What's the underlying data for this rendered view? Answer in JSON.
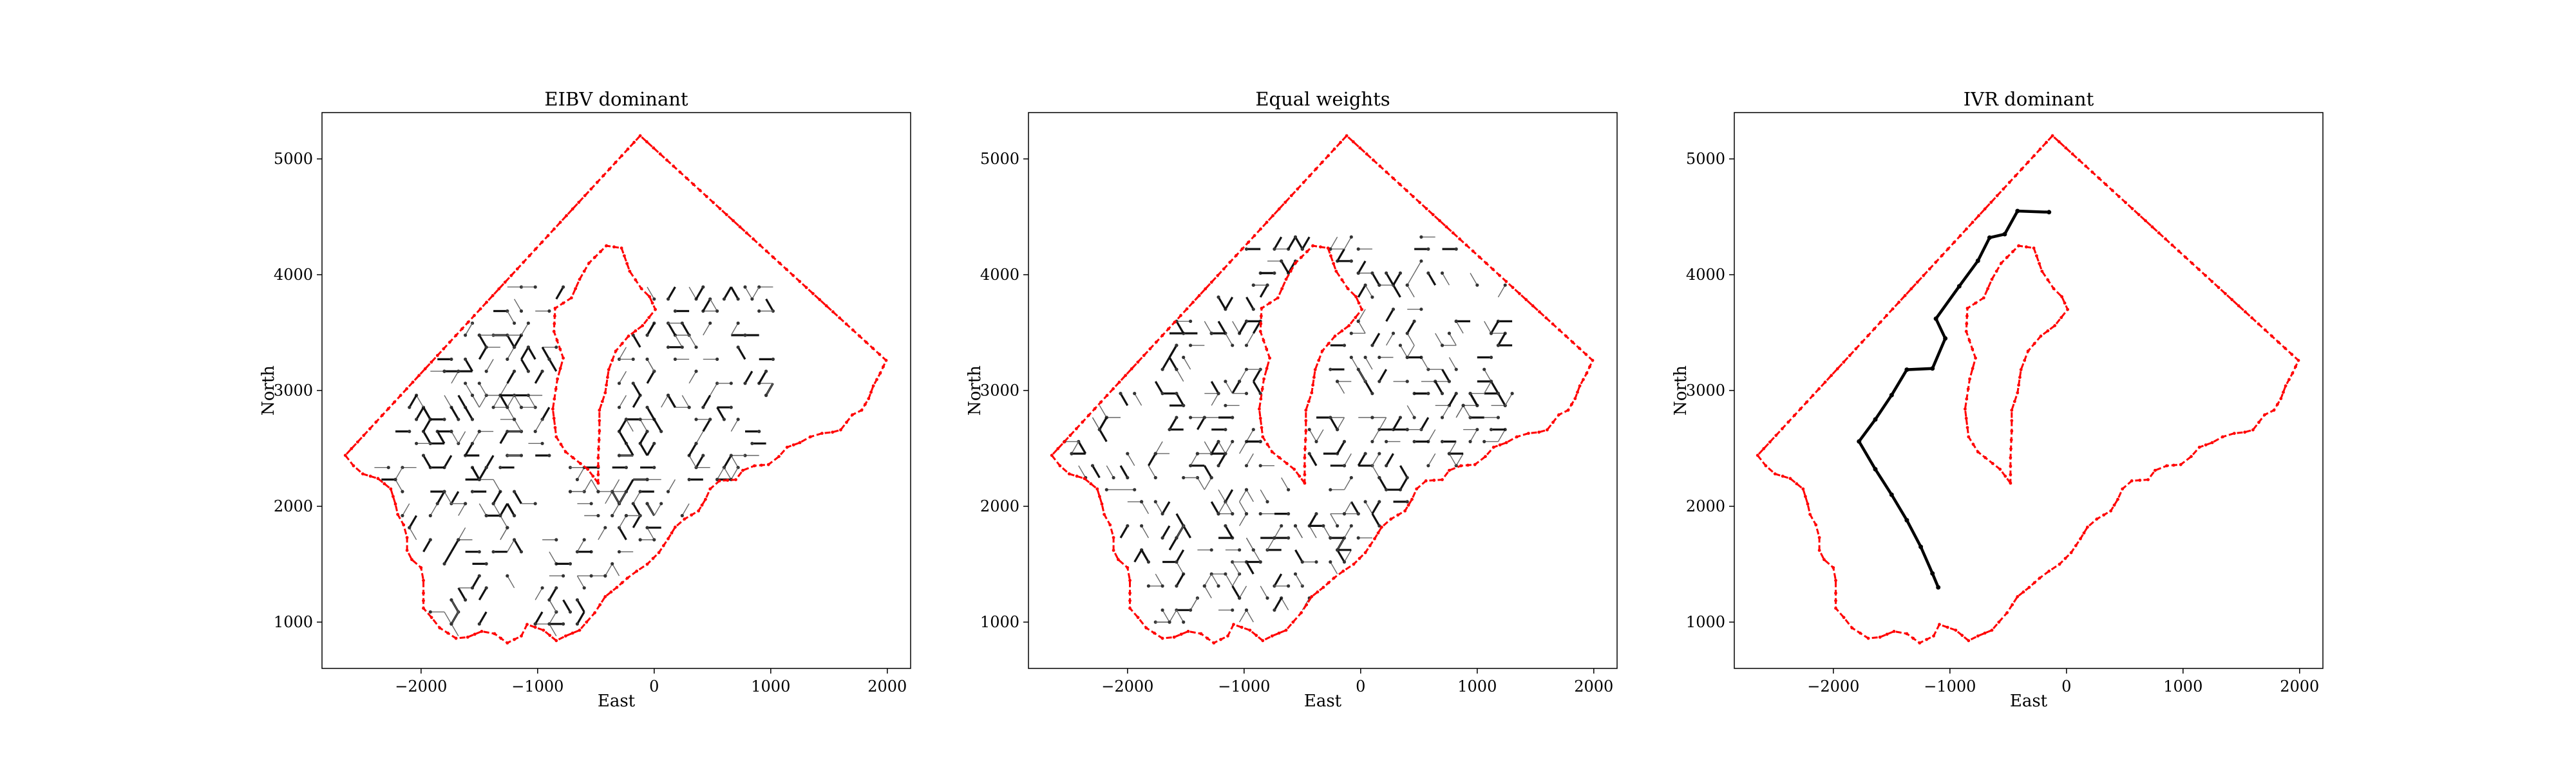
{
  "chart_data": [
    {
      "type": "line",
      "title": "EIBV dominant",
      "xlabel": "East",
      "ylabel": "North",
      "xlim": [
        -2850,
        2200
      ],
      "ylim": [
        600,
        5400
      ],
      "xticks": [
        -2000,
        -1000,
        0,
        1000,
        2000
      ],
      "yticks": [
        1000,
        2000,
        3000,
        4000,
        5000
      ],
      "grid": false,
      "path_style": "dense",
      "path_extent": {
        "east": [
          -2400,
          1050
        ],
        "north": [
          880,
          3900
        ]
      }
    },
    {
      "type": "line",
      "title": "Equal weights",
      "xlabel": "East",
      "ylabel": "North",
      "xlim": [
        -2850,
        2200
      ],
      "ylim": [
        600,
        5400
      ],
      "xticks": [
        -2000,
        -1000,
        0,
        1000,
        2000
      ],
      "yticks": [
        1000,
        2000,
        3000,
        4000,
        5000
      ],
      "grid": false,
      "path_style": "dense",
      "path_extent": {
        "east": [
          -2600,
          1300
        ],
        "north": [
          1000,
          4350
        ]
      }
    },
    {
      "type": "line",
      "title": "IVR dominant",
      "xlabel": "East",
      "ylabel": "North",
      "xlim": [
        -2850,
        2200
      ],
      "ylim": [
        600,
        5400
      ],
      "xticks": [
        -2000,
        -1000,
        0,
        1000,
        2000
      ],
      "yticks": [
        1000,
        2000,
        3000,
        4000,
        5000
      ],
      "grid": false,
      "path_style": "single",
      "path": [
        [
          -1100,
          1300
        ],
        [
          -1150,
          1420
        ],
        [
          -1250,
          1650
        ],
        [
          -1370,
          1880
        ],
        [
          -1500,
          2100
        ],
        [
          -1640,
          2320
        ],
        [
          -1780,
          2560
        ],
        [
          -1640,
          2750
        ],
        [
          -1500,
          2960
        ],
        [
          -1370,
          3180
        ],
        [
          -1150,
          3190
        ],
        [
          -1040,
          3450
        ],
        [
          -1120,
          3620
        ],
        [
          -920,
          3900
        ],
        [
          -760,
          4120
        ],
        [
          -660,
          4320
        ],
        [
          -530,
          4350
        ],
        [
          -420,
          4550
        ],
        [
          -150,
          4540
        ]
      ]
    }
  ],
  "boundary": {
    "outer": [
      [
        -2650,
        2440
      ],
      [
        -2580,
        2350
      ],
      [
        -2500,
        2280
      ],
      [
        -2370,
        2240
      ],
      [
        -2260,
        2150
      ],
      [
        -2220,
        2020
      ],
      [
        -2200,
        1930
      ],
      [
        -2150,
        1840
      ],
      [
        -2120,
        1730
      ],
      [
        -2120,
        1620
      ],
      [
        -2080,
        1540
      ],
      [
        -2000,
        1470
      ],
      [
        -1980,
        1360
      ],
      [
        -1980,
        1250
      ],
      [
        -1980,
        1120
      ],
      [
        -1910,
        1040
      ],
      [
        -1840,
        950
      ],
      [
        -1700,
        860
      ],
      [
        -1600,
        870
      ],
      [
        -1480,
        920
      ],
      [
        -1370,
        900
      ],
      [
        -1260,
        820
      ],
      [
        -1140,
        880
      ],
      [
        -1090,
        980
      ],
      [
        -950,
        930
      ],
      [
        -840,
        840
      ],
      [
        -760,
        880
      ],
      [
        -640,
        930
      ],
      [
        -580,
        1000
      ],
      [
        -510,
        1080
      ],
      [
        -420,
        1220
      ],
      [
        -320,
        1300
      ],
      [
        -230,
        1380
      ],
      [
        -150,
        1440
      ],
      [
        -60,
        1500
      ],
      [
        40,
        1600
      ],
      [
        120,
        1720
      ],
      [
        180,
        1820
      ],
      [
        260,
        1890
      ],
      [
        380,
        1960
      ],
      [
        440,
        2060
      ],
      [
        480,
        2150
      ],
      [
        560,
        2220
      ],
      [
        700,
        2230
      ],
      [
        760,
        2310
      ],
      [
        860,
        2350
      ],
      [
        980,
        2360
      ],
      [
        1070,
        2430
      ],
      [
        1140,
        2510
      ],
      [
        1250,
        2550
      ],
      [
        1340,
        2600
      ],
      [
        1440,
        2630
      ],
      [
        1530,
        2640
      ],
      [
        1600,
        2660
      ],
      [
        1700,
        2790
      ],
      [
        1780,
        2830
      ],
      [
        1840,
        2930
      ],
      [
        1880,
        3040
      ],
      [
        1940,
        3150
      ],
      [
        1990,
        3260
      ],
      [
        -120,
        5200
      ],
      [
        -2650,
        2440
      ]
    ],
    "island": [
      [
        -480,
        2200
      ],
      [
        -570,
        2320
      ],
      [
        -760,
        2470
      ],
      [
        -840,
        2600
      ],
      [
        -870,
        2840
      ],
      [
        -830,
        3100
      ],
      [
        -780,
        3280
      ],
      [
        -860,
        3510
      ],
      [
        -850,
        3710
      ],
      [
        -710,
        3800
      ],
      [
        -640,
        3960
      ],
      [
        -560,
        4100
      ],
      [
        -410,
        4250
      ],
      [
        -280,
        4230
      ],
      [
        -210,
        4030
      ],
      [
        -110,
        3880
      ],
      [
        -40,
        3810
      ],
      [
        10,
        3700
      ],
      [
        -100,
        3560
      ],
      [
        -220,
        3470
      ],
      [
        -330,
        3340
      ],
      [
        -390,
        3180
      ],
      [
        -420,
        2980
      ],
      [
        -470,
        2830
      ],
      [
        -470,
        2650
      ],
      [
        -480,
        2420
      ],
      [
        -480,
        2200
      ]
    ],
    "color": "#ff0000"
  }
}
